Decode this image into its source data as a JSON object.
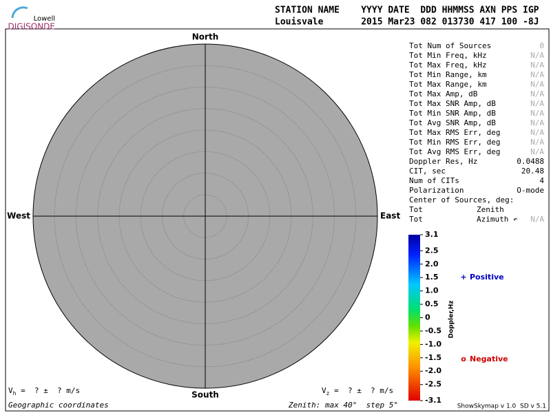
{
  "logo": {
    "top": "Lowell",
    "bottom": "DIGISONDE"
  },
  "header": {
    "columns": "STATION NAME    YYYY DATE  DDD HHMMSS AXN PPS IGP",
    "values": "Louisvale       2015 Mar23 082 013730 417 100 -8J"
  },
  "stats": [
    {
      "label": "Tot Num of Sources",
      "value": 0
    },
    {
      "label": "Tot Min Freq, kHz",
      "value": "N/A"
    },
    {
      "label": "Tot Max Freq, kHz",
      "value": "N/A"
    },
    {
      "label": "Tot Min Range, km",
      "value": "N/A"
    },
    {
      "label": "Tot Max Range, km",
      "value": "N/A"
    },
    {
      "label": "Tot Max Amp, dB",
      "value": "N/A"
    },
    {
      "label": "Tot Max SNR Amp, dB",
      "value": "N/A"
    },
    {
      "label": "Tot Min SNR Amp, dB",
      "value": "N/A"
    },
    {
      "label": "Tot Avg SNR Amp, dB",
      "value": "N/A"
    },
    {
      "label": "Tot Max RMS Err, deg",
      "value": "N/A"
    },
    {
      "label": "Tot Min RMS Err, deg",
      "value": "N/A"
    },
    {
      "label": "Tot Avg RMS Err, deg",
      "value": "N/A"
    },
    {
      "label": "Doppler Res, Hz",
      "value": 0.0488
    },
    {
      "label": "CIT, sec",
      "value": 20.48
    },
    {
      "label": "Num of CITs",
      "value": 4
    },
    {
      "label": "Polarization",
      "value": "O-mode"
    },
    {
      "label": "Center of Sources, deg:"
    },
    {
      "label": "Tot",
      "field": "Zenith"
    },
    {
      "label": "Tot",
      "field": "Azimuth ↶",
      "value": "N/A"
    }
  ],
  "chart_data": {
    "type": "polar",
    "directions": {
      "north": "North",
      "south": "South",
      "east": "East",
      "west": "West"
    },
    "rlim": [
      0,
      40
    ],
    "rticks": [
      5,
      10,
      15,
      20,
      25,
      30,
      35,
      40
    ],
    "colorbar": {
      "label": "Doppler,Hz",
      "lim": [
        -3.1,
        3.1
      ],
      "ticks": [
        3.1,
        2.5,
        {
          "value": 2,
          "label": "2.0"
        },
        1.5,
        {
          "value": 1,
          "label": "1.0"
        },
        0.5,
        0,
        -0.5,
        {
          "value": -1,
          "label": "-1.0"
        },
        -1.5,
        {
          "value": -2,
          "label": "-2.0"
        },
        -2.5,
        -3.1
      ]
    },
    "legend": [
      {
        "symbol": "+",
        "name": "Positive",
        "color": "#0000c0"
      },
      {
        "symbol": "o",
        "name": "Negative",
        "color": "#d00000"
      }
    ]
  },
  "footer": {
    "vh": {
      "symbol": "V",
      "sub": "h",
      "text": " =  ? ±  ? m/s"
    },
    "vz": {
      "symbol": "V",
      "sub": "z",
      "text": " =  ? ±  ? m/s"
    },
    "coords": "Geographic coordinates",
    "zenith": "Zenith: max 40°  step 5°",
    "version": "ShowSkymap v 1.0  SD v 5.1"
  }
}
